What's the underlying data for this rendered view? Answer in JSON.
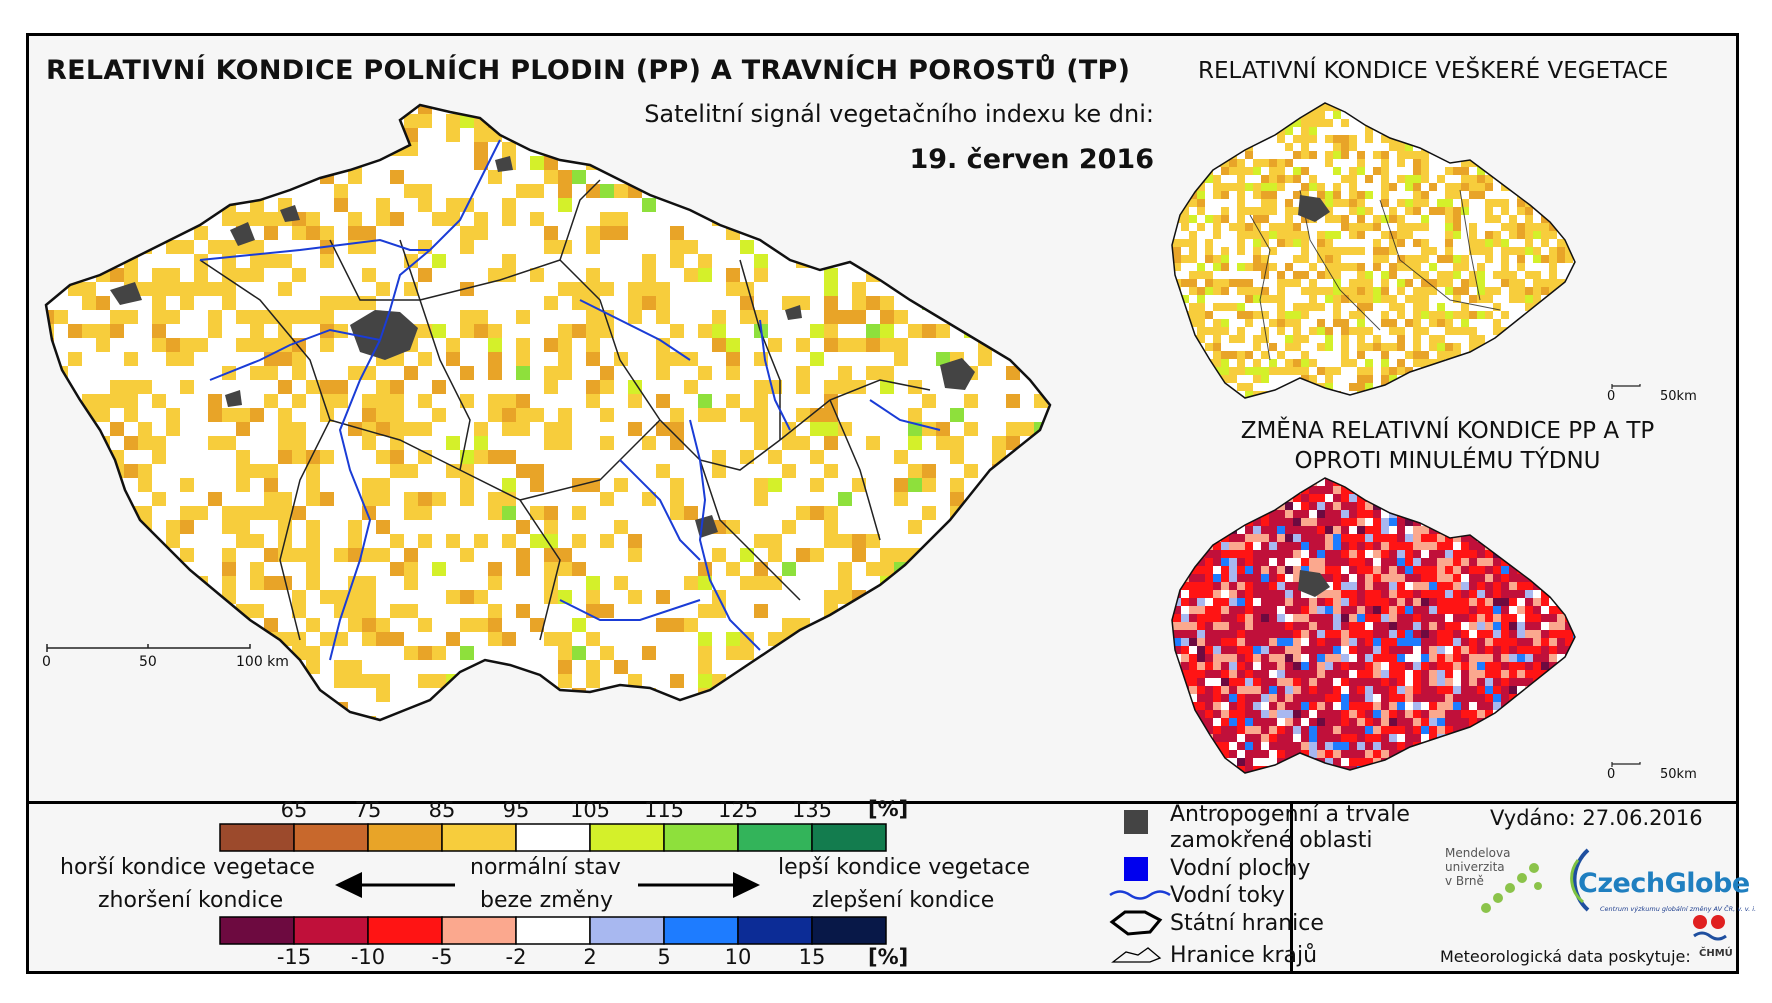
{
  "title_main": "RELATIVNÍ KONDICE POLNÍCH PLODIN (PP) A TRAVNÍCH POROSTŮ (TP)",
  "subtitle": "Satelitní signál vegetačního indexu ke dni:",
  "date": "19. červen 2016",
  "title_vegetation": "RELATIVNÍ KONDICE VEŠKERÉ VEGETACE",
  "title_change": "ZMĚNA RELATIVNÍ KONDICE PP A TP OPROTI MINULÉMU TÝDNU",
  "main_scale": {
    "labels": [
      "0",
      "50",
      "100 km"
    ]
  },
  "small_scale": {
    "labels": [
      "0",
      "50km"
    ]
  },
  "condition_legend": {
    "ticks": [
      "65",
      "75",
      "85",
      "95",
      "105",
      "115",
      "125",
      "135"
    ],
    "unit": "[%]",
    "colors": [
      "#9c4a2c",
      "#c8682c",
      "#e8a428",
      "#f7cd3c",
      "#ffffff",
      "#d4f02a",
      "#8ee03c",
      "#33b45a",
      "#137c4e"
    ]
  },
  "change_legend": {
    "ticks": [
      "-15",
      "-10",
      "-5",
      "-2",
      "2",
      "5",
      "10",
      "15"
    ],
    "unit": "[%]",
    "colors": [
      "#6d0a40",
      "#c0103a",
      "#ff1414",
      "#fba88e",
      "#ffffff",
      "#a8b8f0",
      "#1e7cff",
      "#0c2c96",
      "#081848"
    ]
  },
  "arrow_labels": {
    "worse_vegetation": "horší kondice vegetace",
    "worse_change": "zhoršení kondice",
    "normal": "normální stav",
    "no_change": "beze změny",
    "better_vegetation": "lepší kondice vegetace",
    "better_change": "zlepšení kondice"
  },
  "map_legend": {
    "anthropogenic": "Antropogenní a trvale zamokřené oblasti",
    "anthropogenic_line1": "Antropogenní a trvale",
    "anthropogenic_line2": "zamokřené oblasti",
    "water_bodies": "Vodní plochy",
    "rivers": "Vodní toky",
    "state_border": "Státní hranice",
    "region_border": "Hranice krajů"
  },
  "legend_colors": {
    "anthropogenic": "#444444",
    "water": "#0000ee",
    "river": "#1a3cd6"
  },
  "issued": "Vydáno: 27.06.2016",
  "logos": {
    "mendel": [
      "Mendelova",
      "univerzita",
      "v Brně"
    ],
    "czechglobe": "CzechGlobe",
    "czechglobe_sub": "Centrum výzkumu globální změny AV ČR, v. v. i.",
    "chmu": "ČHMÚ"
  },
  "meteo_credit": "Meteorologická data poskytuje:"
}
